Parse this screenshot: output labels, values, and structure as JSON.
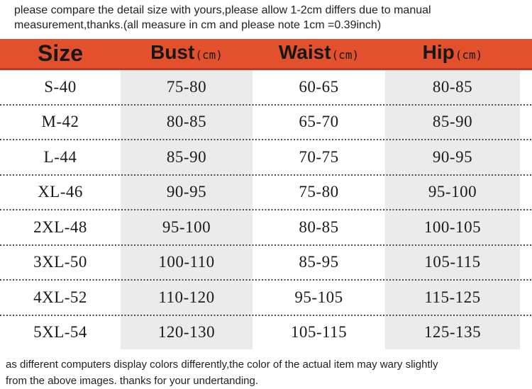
{
  "notes": {
    "top_line1": "please compare the detail size with yours,please allow 1-2cm differs due to manual",
    "top_line2": "measurement,thanks.(all measure in cm and please note 1cm =0.39inch)",
    "bottom_line1": "as different computers display colors differently,the color of the actual item may wary slightly",
    "bottom_line2": "from the above images. thanks for your undertanding."
  },
  "colors": {
    "header_bg": "#e2502c",
    "header_border": "#bc3b1e",
    "shaded_column_bg": "#ebebeb",
    "dotted_line": "#4a4a4a",
    "text": "#1d1d1d"
  },
  "chart_data": {
    "type": "table",
    "units": "cm",
    "columns": [
      {
        "label": "Size",
        "unit": ""
      },
      {
        "label": "Bust",
        "unit": "(cm)"
      },
      {
        "label": "Waist",
        "unit": "(cm)"
      },
      {
        "label": "Hip",
        "unit": "(cm)"
      }
    ],
    "rows": [
      [
        "S-40",
        "75-80",
        "60-65",
        "80-85"
      ],
      [
        "M-42",
        "80-85",
        "65-70",
        "85-90"
      ],
      [
        "L-44",
        "85-90",
        "70-75",
        "90-95"
      ],
      [
        "XL-46",
        "90-95",
        "75-80",
        "95-100"
      ],
      [
        "2XL-48",
        "95-100",
        "80-85",
        "100-105"
      ],
      [
        "3XL-50",
        "100-110",
        "85-95",
        "105-115"
      ],
      [
        "4XL-52",
        "110-120",
        "95-105",
        "115-125"
      ],
      [
        "5XL-54",
        "120-130",
        "105-115",
        "125-135"
      ]
    ]
  }
}
